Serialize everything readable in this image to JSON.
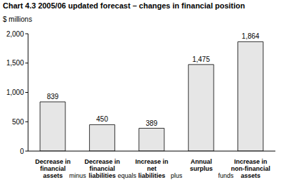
{
  "chart_data": {
    "type": "bar",
    "title": "Chart 4.3 2005/06 updated forecast – changes in financial position",
    "y_label": "$ millions",
    "categories": [
      "Decrease in financial assets",
      "Decrease in financial liabilities",
      "Increase in net liabilities",
      "Annual surplus",
      "Increase in non-financial assets"
    ],
    "values": [
      839,
      450,
      389,
      1475,
      1864
    ],
    "value_labels": [
      "839",
      "450",
      "389",
      "1,475",
      "1,864"
    ],
    "annotations": [
      "minus",
      "equals",
      "plus",
      "funds"
    ],
    "color": "#e6e6e6",
    "ylim": [
      0,
      2000
    ],
    "yticks": [
      0,
      500,
      {
        "value": 1000,
        "label": "1,000"
      },
      {
        "value": 1500,
        "label": "1,500"
      },
      {
        "value": 2000,
        "label": "2,000"
      }
    ],
    "grid": false,
    "data_labels": true
  }
}
